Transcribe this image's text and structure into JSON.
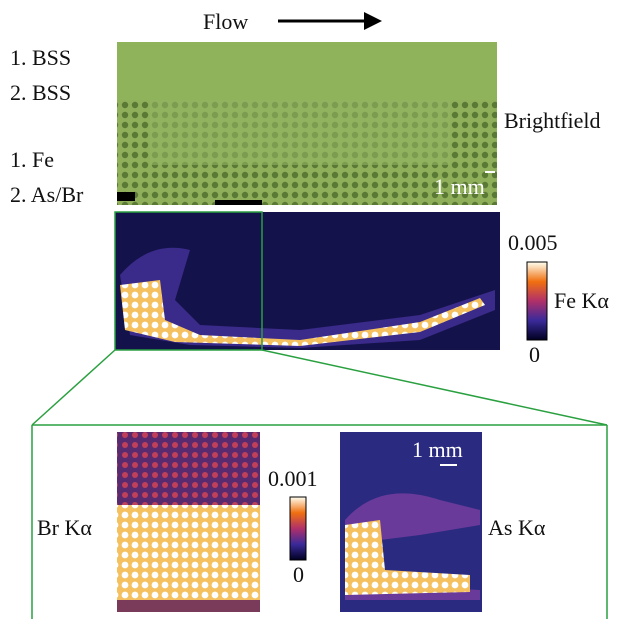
{
  "header": {
    "flow": "Flow"
  },
  "brightfield_panel": {
    "labels": [
      "1. BSS",
      "2. BSS",
      "1. Fe",
      "2. As/Br"
    ],
    "caption": "Brightfield",
    "scale": "1 mm"
  },
  "fe_map": {
    "label": "Fe Kα",
    "max": "0.005",
    "min": "0"
  },
  "inset": {
    "left_label": "Br Kα",
    "right_label": "As Kα",
    "max": "0.001",
    "min": "0",
    "scale": "1 mm"
  }
}
